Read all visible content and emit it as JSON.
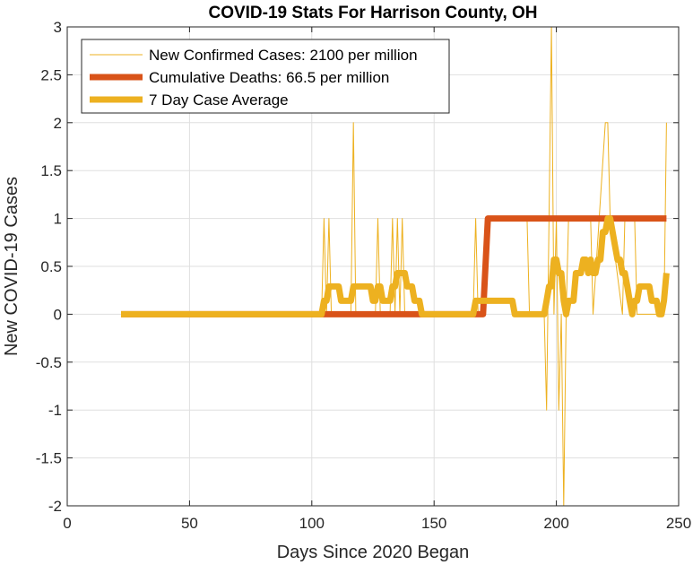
{
  "chart_data": {
    "type": "line",
    "title": "COVID-19 Stats For Harrison County, OH",
    "xlabel": "Days Since 2020 Began",
    "ylabel": "New COVID-19 Cases",
    "xlim": [
      0,
      250
    ],
    "ylim": [
      -2,
      3
    ],
    "xticks": [
      0,
      50,
      100,
      150,
      200,
      250
    ],
    "yticks": [
      -2,
      -1.5,
      -1,
      -0.5,
      0,
      0.5,
      1,
      1.5,
      2,
      2.5,
      3
    ],
    "grid": true,
    "legend_position": "top-left",
    "series": [
      {
        "name": "New Confirmed Cases: 2100 per million",
        "color": "#EDB120",
        "style": "thin",
        "x": [
          22,
          104,
          105,
          106,
          107,
          108,
          109,
          116,
          117,
          118,
          126,
          127,
          128,
          132,
          133,
          134,
          135,
          136,
          137,
          138,
          139,
          166,
          167,
          168,
          171,
          172,
          188,
          189,
          195,
          196,
          197,
          198,
          199,
          200,
          201,
          202,
          203,
          204,
          205,
          214,
          215,
          220,
          221,
          222,
          227,
          228,
          232,
          233,
          244,
          245
        ],
        "y": [
          0,
          0,
          1,
          0,
          1,
          0,
          0,
          0,
          2,
          0,
          0,
          1,
          0,
          0,
          1,
          0,
          1,
          0,
          1,
          0,
          0,
          0,
          1,
          0,
          0,
          1,
          1,
          0,
          0,
          -1,
          1,
          3,
          0,
          1,
          -1,
          0,
          -2,
          0,
          1,
          1,
          0,
          2,
          2,
          1,
          0,
          1,
          1,
          0,
          0,
          2
        ]
      },
      {
        "name": "Cumulative Deaths: 66.5 per million",
        "color": "#D95319",
        "style": "thick",
        "x": [
          22,
          169,
          170,
          171,
          172,
          245
        ],
        "y": [
          0,
          0,
          0,
          0.5,
          1,
          1
        ]
      },
      {
        "name": "7 Day Case Average",
        "color": "#EDB120",
        "style": "thick",
        "x": [
          22,
          104,
          105,
          106,
          107,
          108,
          109,
          110,
          111,
          112,
          113,
          114,
          115,
          116,
          117,
          118,
          119,
          120,
          121,
          122,
          123,
          124,
          125,
          126,
          127,
          128,
          129,
          130,
          131,
          132,
          133,
          134,
          135,
          136,
          137,
          138,
          139,
          140,
          141,
          142,
          143,
          144,
          145,
          146,
          147,
          166,
          167,
          168,
          169,
          170,
          171,
          172,
          173,
          174,
          175,
          176,
          177,
          178,
          179,
          180,
          181,
          182,
          183,
          184,
          185,
          186,
          187,
          188,
          189,
          190,
          191,
          192,
          193,
          194,
          195,
          196,
          197,
          198,
          199,
          200,
          201,
          202,
          203,
          204,
          205,
          206,
          207,
          208,
          209,
          210,
          211,
          212,
          213,
          214,
          215,
          216,
          217,
          218,
          219,
          220,
          221,
          222,
          223,
          224,
          225,
          226,
          227,
          228,
          229,
          230,
          231,
          232,
          233,
          234,
          235,
          236,
          237,
          238,
          239,
          240,
          241,
          242,
          243,
          244,
          245
        ],
        "y": [
          0,
          0,
          0.14,
          0.14,
          0.29,
          0.29,
          0.29,
          0.29,
          0.29,
          0.14,
          0.14,
          0.14,
          0.14,
          0.14,
          0.29,
          0.29,
          0.29,
          0.29,
          0.29,
          0.29,
          0.29,
          0.29,
          0.14,
          0.14,
          0.29,
          0.29,
          0.14,
          0.14,
          0.14,
          0.14,
          0.29,
          0.29,
          0.43,
          0.43,
          0.43,
          0.43,
          0.29,
          0.29,
          0.29,
          0.14,
          0.14,
          0.14,
          0,
          0,
          0,
          0,
          0.14,
          0.14,
          0.14,
          0.14,
          0.14,
          0.14,
          0.14,
          0.14,
          0.14,
          0.14,
          0.14,
          0.14,
          0.14,
          0.14,
          0.14,
          0.14,
          0,
          0,
          0,
          0,
          0,
          0,
          0,
          0,
          0,
          0,
          0,
          0,
          0,
          0.14,
          0.29,
          0.29,
          0.57,
          0.57,
          0.43,
          0.43,
          0.14,
          0,
          0.14,
          0.14,
          0.14,
          0.43,
          0.43,
          0.43,
          0.57,
          0.57,
          0.43,
          0.57,
          0.43,
          0.43,
          0.57,
          0.57,
          0.86,
          0.86,
          1,
          1,
          0.86,
          0.71,
          0.57,
          0.57,
          0.43,
          0.43,
          0.29,
          0.14,
          0,
          0.14,
          0.14,
          0.29,
          0.29,
          0.29,
          0.29,
          0.29,
          0.14,
          0.14,
          0.14,
          0,
          0,
          0.14,
          0.43
        ]
      }
    ]
  }
}
